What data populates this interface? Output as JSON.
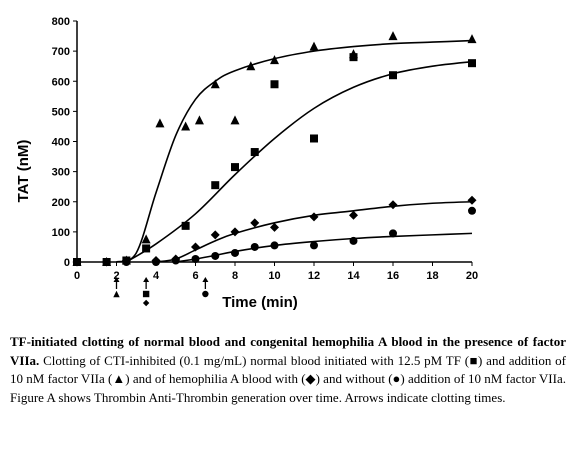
{
  "chart_data": {
    "type": "scatter",
    "title": "",
    "xlabel": "Time (min)",
    "ylabel": "TAT (nM)",
    "xlim": [
      0,
      20
    ],
    "ylim": [
      0,
      800
    ],
    "xticks": [
      0,
      2,
      4,
      6,
      8,
      10,
      12,
      14,
      16,
      18,
      20
    ],
    "yticks": [
      0,
      100,
      200,
      300,
      400,
      500,
      600,
      700,
      800
    ],
    "grid": false,
    "series": [
      {
        "marker": "triangle",
        "points": [
          [
            0,
            0
          ],
          [
            1.5,
            0
          ],
          [
            2.5,
            5
          ],
          [
            3.5,
            75
          ],
          [
            4.2,
            460
          ],
          [
            5.5,
            450
          ],
          [
            6.2,
            470
          ],
          [
            7,
            590
          ],
          [
            8,
            470
          ],
          [
            8.8,
            650
          ],
          [
            10,
            670
          ],
          [
            12,
            715
          ],
          [
            14,
            690
          ],
          [
            16,
            750
          ],
          [
            20,
            740
          ]
        ],
        "fit": [
          [
            2,
            0
          ],
          [
            3,
            30
          ],
          [
            4,
            230
          ],
          [
            5,
            420
          ],
          [
            6,
            540
          ],
          [
            7,
            600
          ],
          [
            8,
            635
          ],
          [
            10,
            675
          ],
          [
            12,
            700
          ],
          [
            14,
            715
          ],
          [
            16,
            725
          ],
          [
            18,
            730
          ],
          [
            20,
            735
          ]
        ],
        "clot_time": 2
      },
      {
        "marker": "square",
        "points": [
          [
            0,
            0
          ],
          [
            1.5,
            0
          ],
          [
            2.5,
            5
          ],
          [
            3.5,
            45
          ],
          [
            5.5,
            120
          ],
          [
            7,
            255
          ],
          [
            8,
            315
          ],
          [
            9,
            365
          ],
          [
            10,
            590
          ],
          [
            12,
            410
          ],
          [
            14,
            680
          ],
          [
            16,
            620
          ],
          [
            20,
            660
          ]
        ],
        "fit": [
          [
            2.5,
            0
          ],
          [
            4,
            60
          ],
          [
            6,
            160
          ],
          [
            8,
            290
          ],
          [
            10,
            410
          ],
          [
            12,
            510
          ],
          [
            14,
            580
          ],
          [
            16,
            625
          ],
          [
            18,
            650
          ],
          [
            20,
            665
          ]
        ],
        "clot_time": 3.5
      },
      {
        "marker": "diamond",
        "points": [
          [
            0,
            0
          ],
          [
            1.5,
            0
          ],
          [
            2.5,
            5
          ],
          [
            4,
            5
          ],
          [
            5,
            10
          ],
          [
            6,
            50
          ],
          [
            7,
            90
          ],
          [
            8,
            100
          ],
          [
            9,
            130
          ],
          [
            10,
            115
          ],
          [
            12,
            150
          ],
          [
            14,
            155
          ],
          [
            16,
            190
          ],
          [
            20,
            205
          ]
        ],
        "fit": [
          [
            4,
            0
          ],
          [
            5,
            10
          ],
          [
            6,
            40
          ],
          [
            7,
            70
          ],
          [
            8,
            95
          ],
          [
            10,
            130
          ],
          [
            12,
            155
          ],
          [
            14,
            170
          ],
          [
            16,
            185
          ],
          [
            18,
            195
          ],
          [
            20,
            200
          ]
        ],
        "clot_time": 3.5
      },
      {
        "marker": "circle",
        "points": [
          [
            0,
            0
          ],
          [
            1.5,
            0
          ],
          [
            2.5,
            0
          ],
          [
            4,
            0
          ],
          [
            5,
            5
          ],
          [
            6,
            10
          ],
          [
            7,
            20
          ],
          [
            8,
            30
          ],
          [
            9,
            50
          ],
          [
            10,
            55
          ],
          [
            12,
            55
          ],
          [
            14,
            70
          ],
          [
            16,
            95
          ],
          [
            20,
            170
          ]
        ],
        "fit": [
          [
            5,
            0
          ],
          [
            6,
            10
          ],
          [
            7,
            22
          ],
          [
            8,
            35
          ],
          [
            10,
            55
          ],
          [
            12,
            68
          ],
          [
            14,
            78
          ],
          [
            16,
            85
          ],
          [
            18,
            90
          ],
          [
            20,
            95
          ]
        ],
        "clot_time": 6.5
      }
    ]
  },
  "caption": {
    "bold": "TF-initiated clotting of normal blood and congenital hemophilia A blood in the presence of factor VIIa.",
    "text": " Clotting of CTI-inhibited (0.1 mg/mL) normal blood initiated with 12.5 pM TF (■) and addition of 10 nM factor VIIa (▲) and of hemophilia A blood with (◆) and without (●) addition of 10 nM factor VIIa. Figure A shows Thrombin Anti-Thrombin generation over time. Arrows indicate clotting times."
  }
}
